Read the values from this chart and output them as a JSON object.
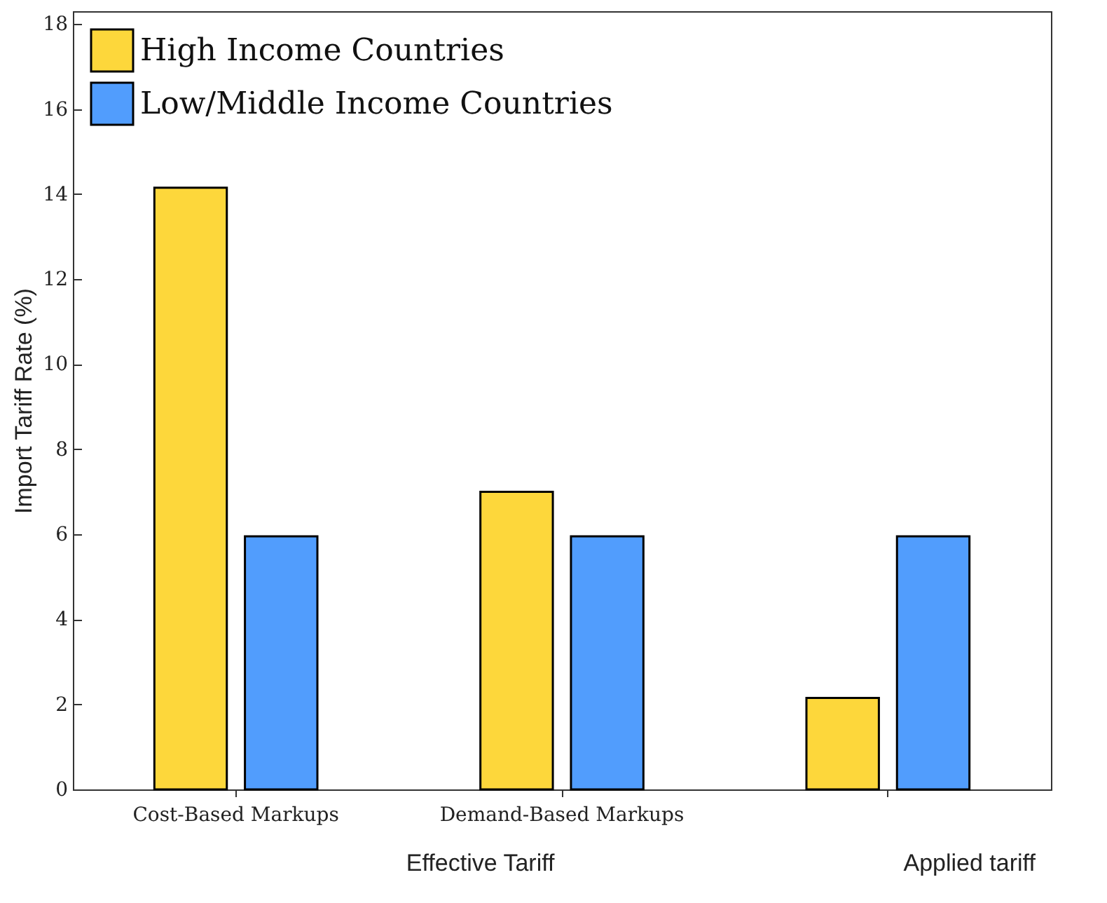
{
  "chart_data": {
    "type": "bar",
    "ylabel": "Import Tariff Rate (%)",
    "categories": [
      "Cost-Based Markups",
      "Demand-Based Markups",
      null
    ],
    "series": [
      {
        "name": "High Income Countries",
        "color": "#fdd73b",
        "values": [
          14.15,
          7.0,
          2.15
        ]
      },
      {
        "name": "Low/Middle Income Countries",
        "color": "#519dfd",
        "values": [
          5.95,
          5.95,
          5.95
        ]
      }
    ],
    "ylim": [
      0,
      18.3
    ],
    "yticks": [
      0,
      2,
      4,
      6,
      8,
      10,
      12,
      14,
      16,
      18
    ],
    "legend": "top left",
    "grid": false,
    "annotations": [
      "Effective Tariff",
      "Applied tariff"
    ]
  }
}
